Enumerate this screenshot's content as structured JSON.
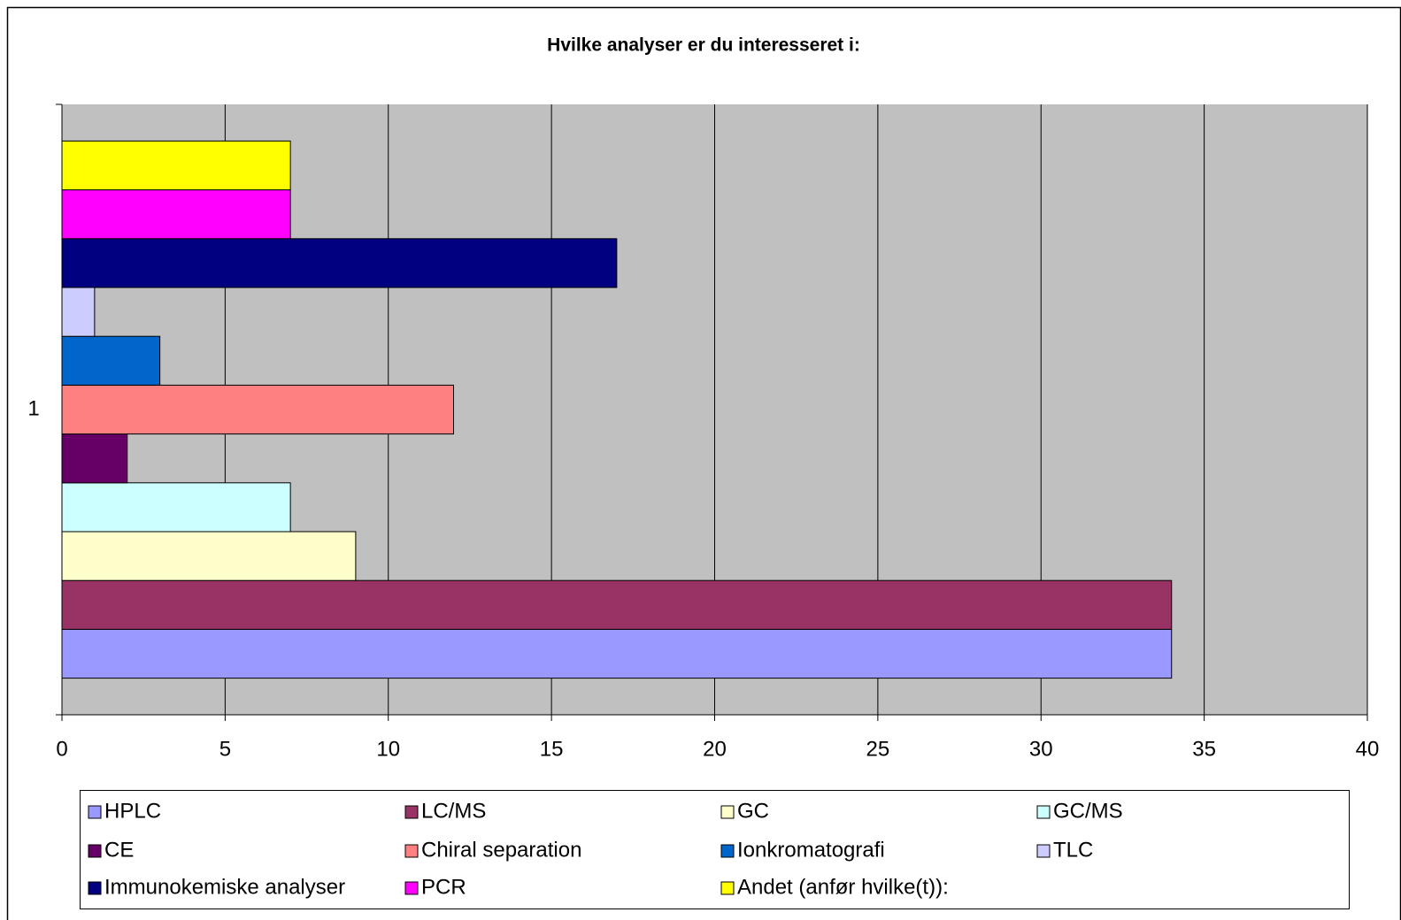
{
  "chart_data": {
    "type": "bar",
    "orientation": "horizontal",
    "title": "Hvilke analyser er du interesseret i:",
    "categories": [
      "1"
    ],
    "series": [
      {
        "name": "HPLC",
        "color": "#9999ff",
        "values": [
          34
        ]
      },
      {
        "name": "LC/MS",
        "color": "#993366",
        "values": [
          34
        ]
      },
      {
        "name": "GC",
        "color": "#ffffcc",
        "values": [
          9
        ]
      },
      {
        "name": "GC/MS",
        "color": "#ccffff",
        "values": [
          7
        ]
      },
      {
        "name": "CE",
        "color": "#660066",
        "values": [
          2
        ]
      },
      {
        "name": "Chiral separation",
        "color": "#ff8080",
        "values": [
          12
        ]
      },
      {
        "name": "Ionkromatografi",
        "color": "#0066cc",
        "values": [
          3
        ]
      },
      {
        "name": "TLC",
        "color": "#ccccff",
        "values": [
          1
        ]
      },
      {
        "name": "Immunokemiske analyser",
        "color": "#000080",
        "values": [
          17
        ]
      },
      {
        "name": "PCR",
        "color": "#ff00ff",
        "values": [
          7
        ]
      },
      {
        "name": "Andet (anfør hvilke(t)):",
        "color": "#ffff00",
        "values": [
          7
        ]
      }
    ],
    "xlim": [
      0,
      40
    ],
    "xticks": [
      0,
      5,
      10,
      15,
      20,
      25,
      30,
      35,
      40
    ],
    "grid": true,
    "plot_background": "#c0c0c0",
    "legend": "bottom"
  }
}
